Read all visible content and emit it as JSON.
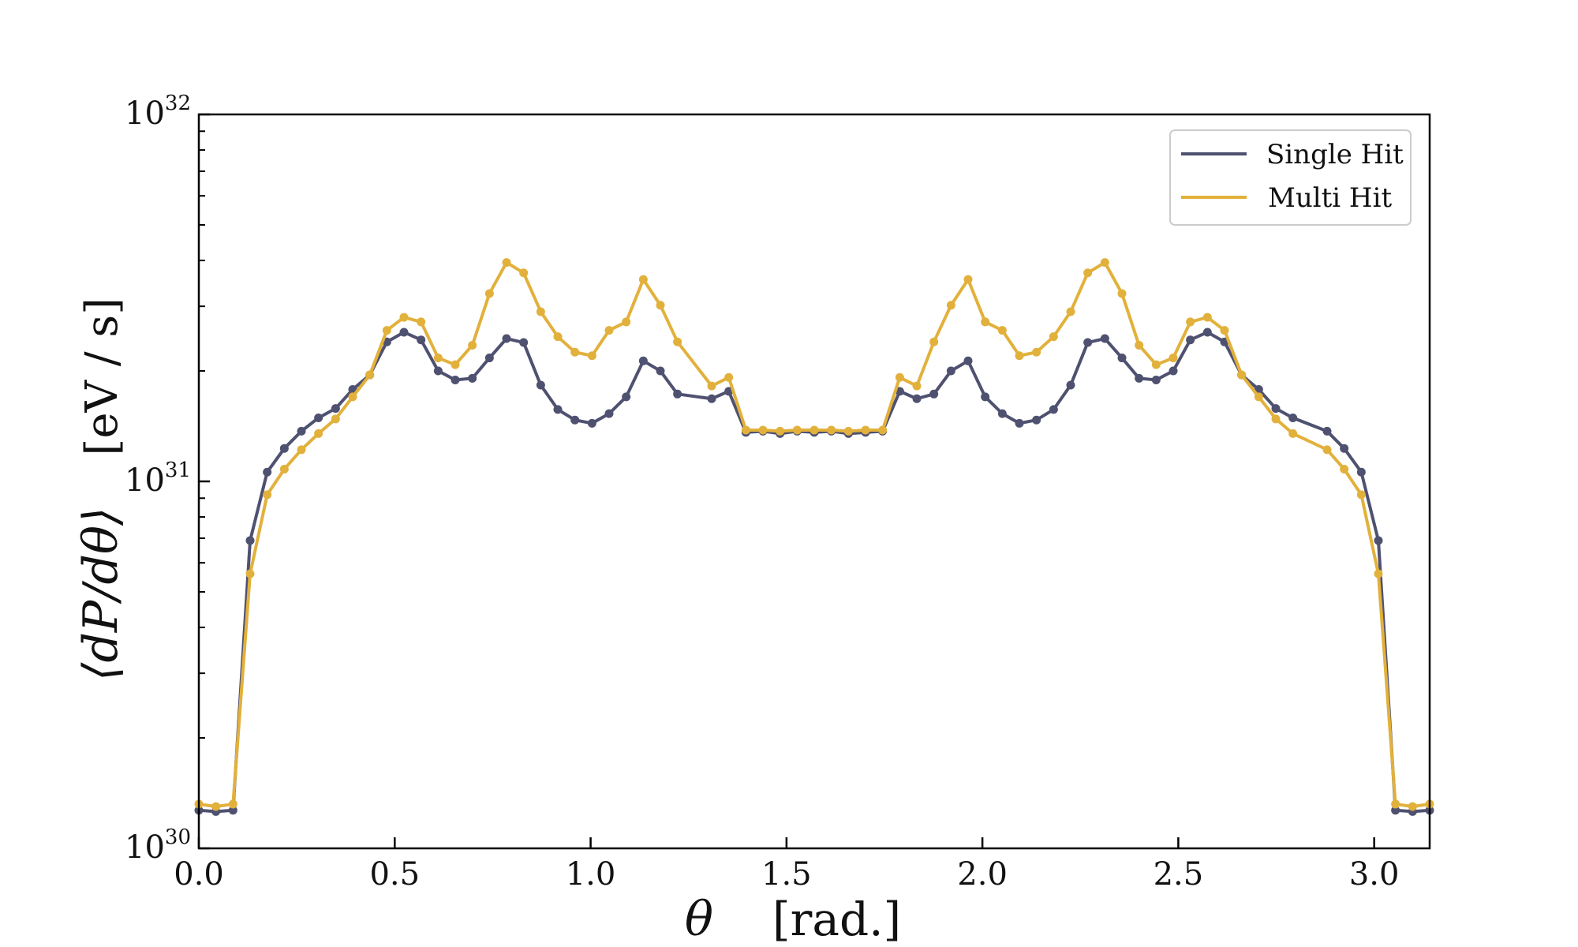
{
  "chart_data": {
    "type": "line",
    "title": "",
    "xlabel_symbol": "θ",
    "xlabel_unit": "[rad.]",
    "ylabel_symbol": "⟨dP/dθ⟩",
    "ylabel_unit": "[eV / s]",
    "xlim": [
      0.0,
      3.1416
    ],
    "ylim": [
      1e+30,
      1e+32
    ],
    "yscale": "log",
    "grid": false,
    "legend_position": "top-right",
    "x_ticks": [
      {
        "value": 0.0,
        "label": "0.0"
      },
      {
        "value": 0.5,
        "label": "0.5"
      },
      {
        "value": 1.0,
        "label": "1.0"
      },
      {
        "value": 1.5,
        "label": "1.5"
      },
      {
        "value": 2.0,
        "label": "2.0"
      },
      {
        "value": 2.5,
        "label": "2.5"
      },
      {
        "value": 3.0,
        "label": "3.0"
      }
    ],
    "y_ticks": [
      {
        "value": 1e+30,
        "base": "10",
        "exponent": "30"
      },
      {
        "value": 1e+31,
        "base": "10",
        "exponent": "31"
      },
      {
        "value": 1e+32,
        "base": "10",
        "exponent": "32"
      }
    ],
    "x": [
      0.0,
      0.0436,
      0.0873,
      0.1309,
      0.1745,
      0.2182,
      0.2618,
      0.3054,
      0.3491,
      0.3927,
      0.4363,
      0.48,
      0.5236,
      0.5672,
      0.6109,
      0.6545,
      0.6981,
      0.7418,
      0.7854,
      0.829,
      0.8727,
      0.9163,
      0.9599,
      1.0036,
      1.0472,
      1.0908,
      1.1345,
      1.1781,
      1.2217,
      1.309,
      1.3526,
      1.3963,
      1.4399,
      1.4835,
      1.5272,
      1.5708,
      1.6144,
      1.6581,
      1.7017,
      1.7453,
      1.789,
      1.8326,
      1.8762,
      1.9199,
      1.9635,
      2.0071,
      2.0508,
      2.0944,
      2.138,
      2.1817,
      2.2253,
      2.2689,
      2.3126,
      2.3562,
      2.3998,
      2.4435,
      2.4871,
      2.5307,
      2.5744,
      2.618,
      2.6616,
      2.7053,
      2.7489,
      2.7925,
      2.8798,
      2.9234,
      2.9671,
      3.0107,
      3.0543,
      3.098,
      3.1416
    ],
    "series": [
      {
        "name": "Single Hit",
        "color": "#4f5170",
        "values": [
          1.27e+30,
          1.26e+30,
          1.27e+30,
          6.9e+30,
          1.06e+31,
          1.23e+31,
          1.37e+31,
          1.49e+31,
          1.58e+31,
          1.78e+31,
          1.95e+31,
          2.4e+31,
          2.55e+31,
          2.43e+31,
          2e+31,
          1.89e+31,
          1.91e+31,
          2.17e+31,
          2.45e+31,
          2.39e+31,
          1.83e+31,
          1.57e+31,
          1.47e+31,
          1.44e+31,
          1.53e+31,
          1.7e+31,
          2.13e+31,
          2e+31,
          1.73e+31,
          1.68e+31,
          1.76e+31,
          1.36e+31,
          1.37e+31,
          1.35e+31,
          1.37e+31,
          1.36e+31,
          1.37e+31,
          1.35e+31,
          1.36e+31,
          1.37e+31,
          1.76e+31,
          1.68e+31,
          1.73e+31,
          2e+31,
          2.13e+31,
          1.7e+31,
          1.53e+31,
          1.44e+31,
          1.47e+31,
          1.57e+31,
          1.83e+31,
          2.39e+31,
          2.45e+31,
          2.17e+31,
          1.91e+31,
          1.89e+31,
          2e+31,
          2.43e+31,
          2.55e+31,
          2.4e+31,
          1.95e+31,
          1.78e+31,
          1.58e+31,
          1.49e+31,
          1.37e+31,
          1.23e+31,
          1.06e+31,
          6.9e+30,
          1.27e+30,
          1.26e+30,
          1.27e+30
        ]
      },
      {
        "name": "Multi Hit",
        "color": "#e2b13c",
        "values": [
          1.32e+30,
          1.3e+30,
          1.32e+30,
          5.6e+30,
          9.2e+30,
          1.08e+31,
          1.22e+31,
          1.35e+31,
          1.48e+31,
          1.7e+31,
          1.95e+31,
          2.58e+31,
          2.8e+31,
          2.72e+31,
          2.17e+31,
          2.08e+31,
          2.35e+31,
          3.25e+31,
          3.95e+31,
          3.7e+31,
          2.9e+31,
          2.48e+31,
          2.25e+31,
          2.2e+31,
          2.58e+31,
          2.72e+31,
          3.55e+31,
          3.02e+31,
          2.4e+31,
          1.82e+31,
          1.92e+31,
          1.38e+31,
          1.38e+31,
          1.37e+31,
          1.38e+31,
          1.38e+31,
          1.38e+31,
          1.37e+31,
          1.38e+31,
          1.38e+31,
          1.92e+31,
          1.82e+31,
          2.4e+31,
          3.02e+31,
          3.55e+31,
          2.72e+31,
          2.58e+31,
          2.2e+31,
          2.25e+31,
          2.48e+31,
          2.9e+31,
          3.7e+31,
          3.95e+31,
          3.25e+31,
          2.35e+31,
          2.08e+31,
          2.17e+31,
          2.72e+31,
          2.8e+31,
          2.58e+31,
          1.95e+31,
          1.7e+31,
          1.48e+31,
          1.35e+31,
          1.22e+31,
          1.08e+31,
          9.2e+30,
          5.6e+30,
          1.32e+30,
          1.3e+30,
          1.32e+30
        ]
      }
    ]
  }
}
